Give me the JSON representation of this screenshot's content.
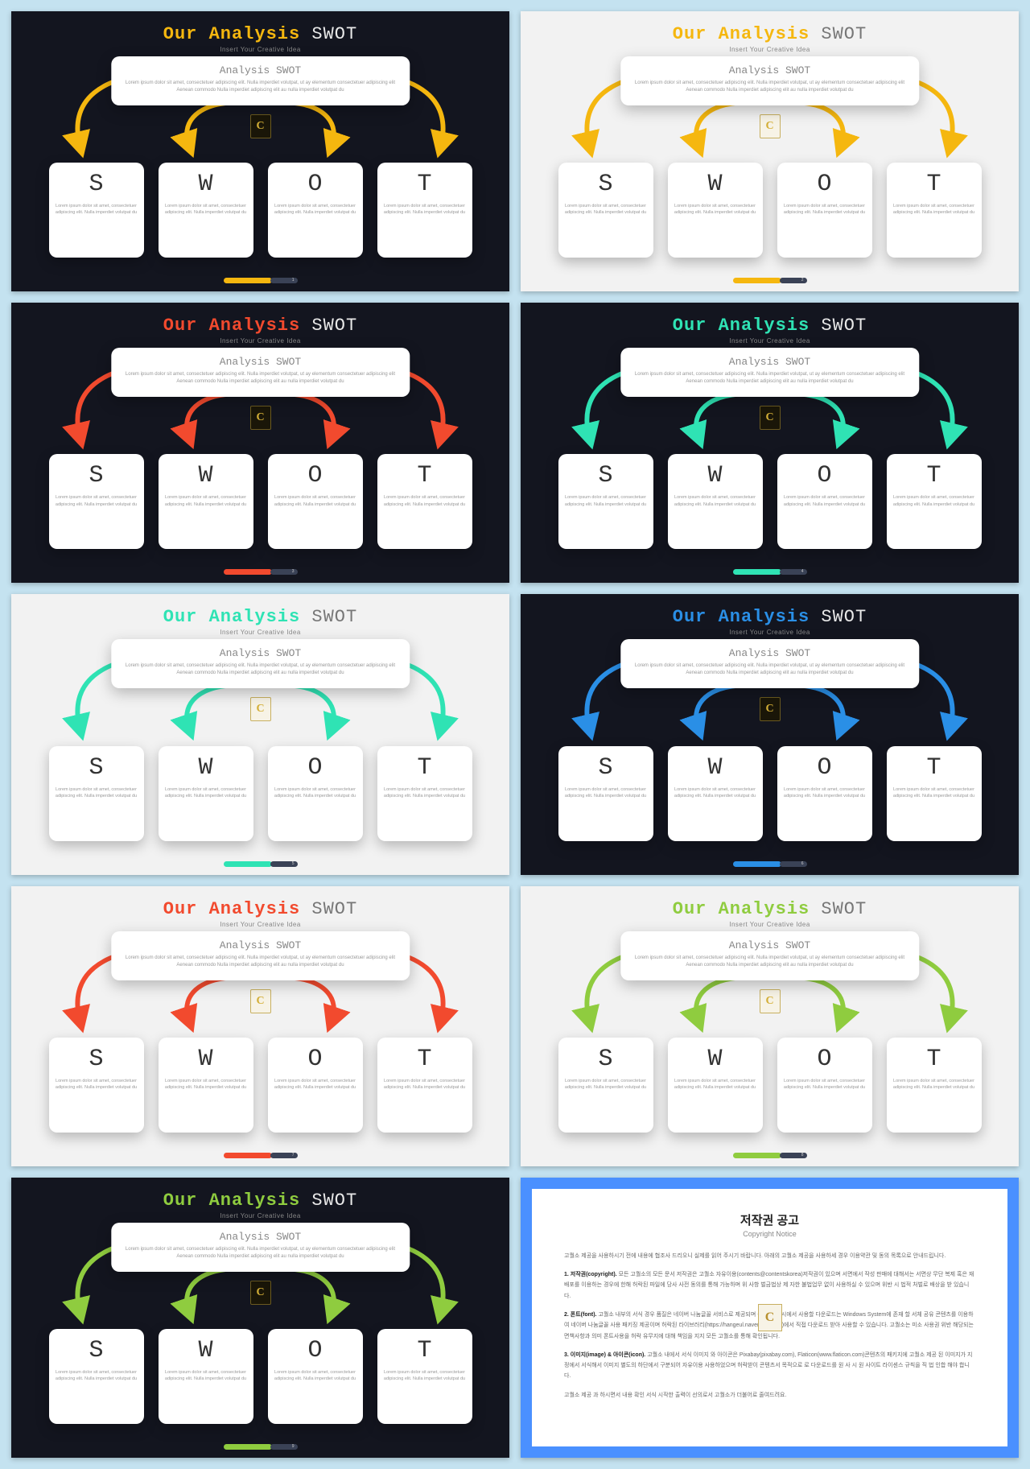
{
  "page_background": "#c4e2f0",
  "common": {
    "title_prefix": "Our Analysis",
    "title_suffix": "SWOT",
    "subtitle": "Insert Your Creative Idea",
    "analysis_title_a": "Analysis",
    "analysis_title_b": "SWOT",
    "analysis_body": "Lorem ipsum dolor sit amet, consectetuer adipiscing elit. Nulla imperdiet volutpat, ut ay elementum consectetuer adipiscing elit Aenean commodo Nulla imperdiet adipiscing elit au nulla imperdiet volutpat du",
    "card_body": "Lorem ipsum dolor sit amet, consectetuer adipiscing elit. Nulla imperdiet volutpat du",
    "logo_letter": "C",
    "letters": [
      "S",
      "W",
      "O",
      "T"
    ]
  },
  "slides": [
    {
      "bg": "dark",
      "accent": "#f5b70f",
      "title_rest_color": "#e8e8e8",
      "page_num": "1"
    },
    {
      "bg": "light",
      "accent": "#f5b70f",
      "title_rest_color": "#777777",
      "page_num": "2"
    },
    {
      "bg": "dark",
      "accent": "#f24a2e",
      "title_rest_color": "#e8e8e8",
      "page_num": "3"
    },
    {
      "bg": "dark",
      "accent": "#2fe3b4",
      "title_rest_color": "#e8e8e8",
      "page_num": "4"
    },
    {
      "bg": "light",
      "accent": "#2fe3b4",
      "title_rest_color": "#777777",
      "page_num": "5"
    },
    {
      "bg": "dark",
      "accent": "#2a8fe6",
      "title_rest_color": "#e8e8e8",
      "page_num": "6"
    },
    {
      "bg": "light",
      "accent": "#f24a2e",
      "title_rest_color": "#777777",
      "page_num": "7"
    },
    {
      "bg": "light",
      "accent": "#8fcc3f",
      "title_rest_color": "#777777",
      "page_num": "8"
    },
    {
      "bg": "dark",
      "accent": "#8fcc3f",
      "title_rest_color": "#e8e8e8",
      "page_num": "9"
    }
  ],
  "arrow_style": {
    "stroke_width": 6,
    "arrowhead_size": 10
  },
  "copyright": {
    "border_color": "#4a90ff",
    "title": "저작권 공고",
    "subtitle": "Copyright Notice",
    "p0": "고퀄소 제공을 사용하시기 전에 내용에 협조사 드리오니 실제를 읽어 주시기 바랍니다. 아래의 고퀄소 제공을 사용하세 경우 이용약관 및 동의 목록으로 안내드립니다.",
    "h1": "1. 저작권(copyright).",
    "p1": "모든 고퀄소의 모든 문서 저작권은 고퀄소 자유이용(contents@contentskorea)저작권이 있으며 서면에서 작성 판매에 대해서는 서면상 무단 복제 혹은 재 배포를 이용하는 경우에 한해 허락된 파일에 당사 사전 동의를 통해 가능하며 위 사항 벌금법상 제 자한 불법업무 없이 사용하실 수 있으며 위반 시 법적 처벌로 배상을 받 있습니다.",
    "h2": "2. 폰트(font).",
    "p2": "고퀄소 내부의 서식 경우 품질은 네이버 나눔글꼴 서비스로 제공되며 동의 사용 시에서 사용할 다운로드는 Windows System에 존재 할 서체 공유 콘텐츠를 이용하여 네이버 나눔글꼴 사용 패키징 제공이며 허락된 라이브러리(https://hangeul.naver.com/font)에서 직접 다운로드 받아 사용할 수 있습니다. 고퀄소는 미소 사용권 위반 해당되는 면책사항과 의미 폰트사용을 허락 유무지에 대해 책임을 지지 모든 고퀄소를 통해 확인됩니다.",
    "h3": "3. 이미지(image) & 아이콘(icon).",
    "p3": "고퀄소 내에서 서식 이미지 와 아이콘은 Pixabay(pixabay.com), Flaticon(www.flaticon.com)콘텐츠의 패키지에 고퀄소 제공 된 이미지가 지정에서 서식해서 이미지 별도의 하단에서 구분되어 자유이용 사용하었으며 허락받이 콘텐츠서 목적으로 로 다운로드를 원 사 시 원 사이트 라이센스 규칙을 직 법 인합 해야 합니다.",
    "p4": "고퀄소 제공 과 하시면서 내용 확인 서식 시작한 출력이 선의로서 고퀄소가 더불어로 줄여드려요."
  }
}
